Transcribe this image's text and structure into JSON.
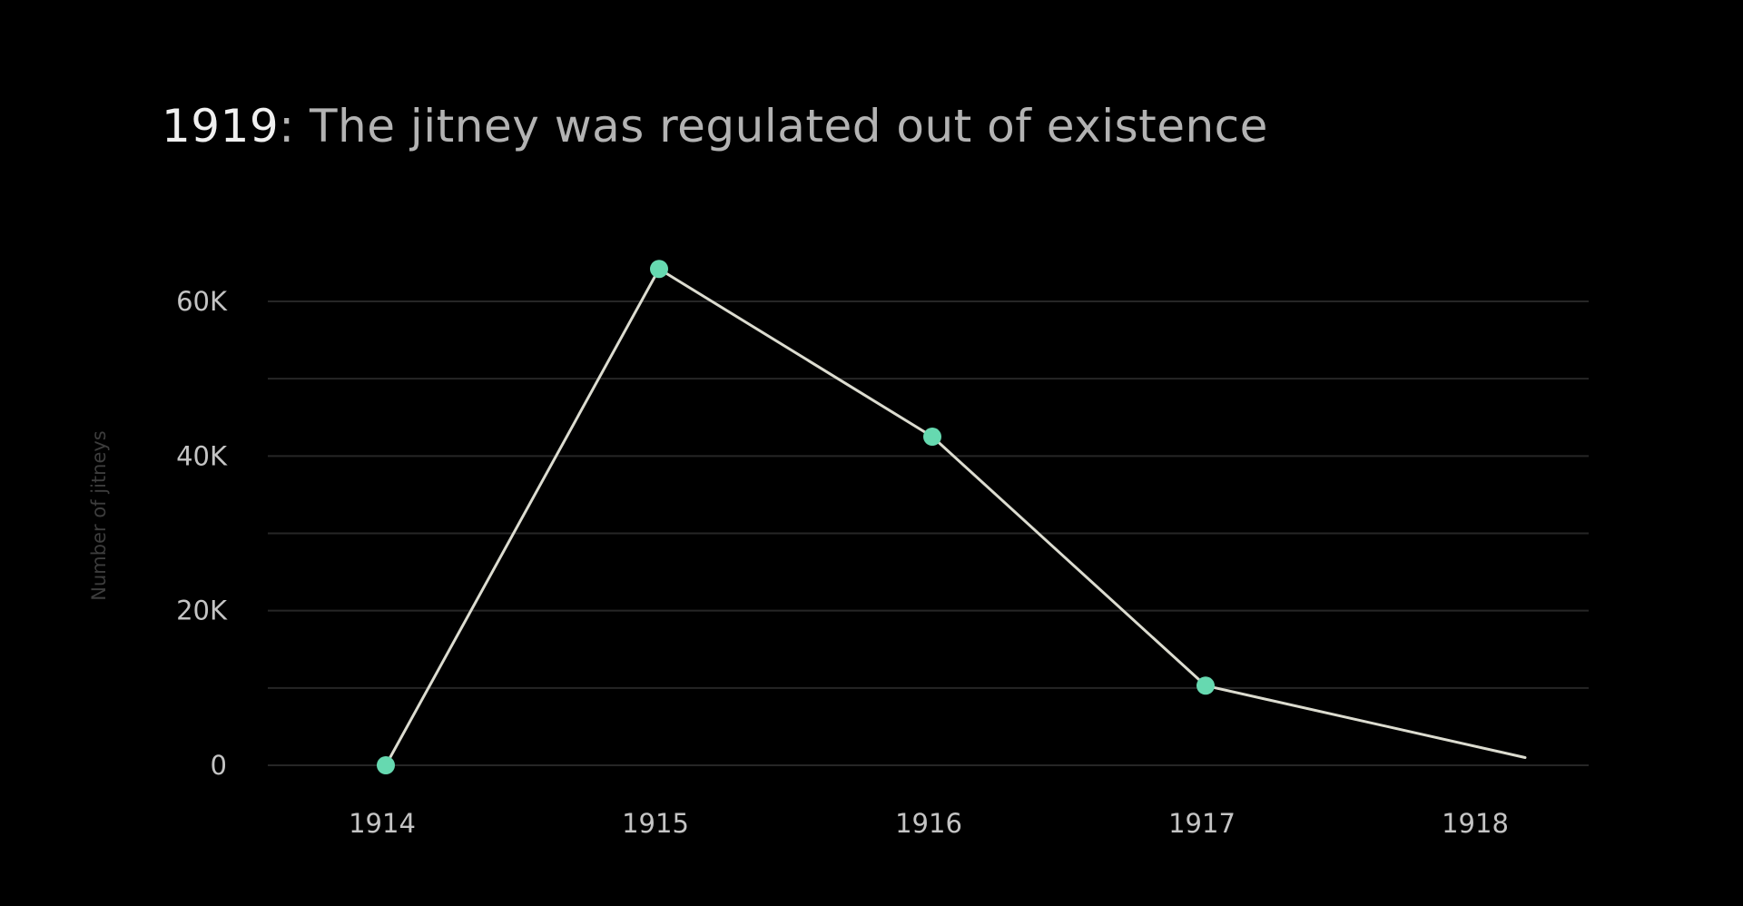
{
  "chart_data": {
    "type": "line",
    "title_year": "1919",
    "title_text": ": The jitney was regulated out of existence",
    "ylabel": "Number of jitneys",
    "xlabel": "",
    "x": [
      "1914",
      "1915",
      "1916",
      "1917",
      "1918"
    ],
    "x_ticks": [
      "1914",
      "1915",
      "1916",
      "1917",
      "1918"
    ],
    "y_ticks": [
      "0",
      "20K",
      "40K",
      "60K"
    ],
    "y_tick_values": [
      0,
      20000,
      40000,
      60000
    ],
    "ylim": [
      0,
      60000
    ],
    "grid": true,
    "series": [
      {
        "values": [
          0,
          64200,
          42500,
          10300,
          1000
        ],
        "markers": [
          true,
          true,
          true,
          true,
          false
        ]
      }
    ],
    "colors": {
      "background": "#000000",
      "line": "#dcdcd0",
      "marker": "#66d9b0",
      "grid": "#262626"
    }
  }
}
